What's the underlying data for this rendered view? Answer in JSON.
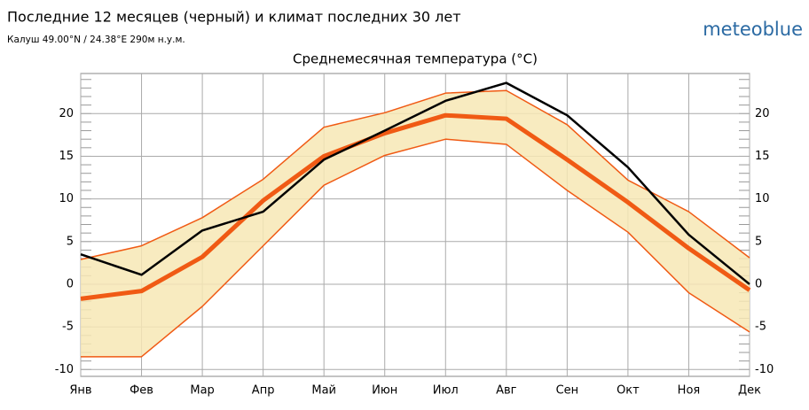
{
  "header": {
    "title": "Последние 12 месяцев (черный) и климат последних 30 лет",
    "subtitle": "Калуш 49.00°N / 24.38°E   290м н.у.м.",
    "logo": "meteoblue"
  },
  "chart_data": {
    "type": "line",
    "title": "Среднемесячная температура (°C)",
    "categories": [
      "Янв",
      "Фев",
      "Мар",
      "Апр",
      "Май",
      "Июн",
      "Июл",
      "Авг",
      "Сен",
      "Окт",
      "Ноя",
      "Дек"
    ],
    "band": {
      "color": "#f7e8b5",
      "upper": [
        2.9,
        4.5,
        7.8,
        12.3,
        18.4,
        20.1,
        22.4,
        22.7,
        18.7,
        12.2,
        8.5,
        3.1
      ],
      "lower": [
        -8.5,
        -8.5,
        -2.6,
        4.5,
        11.6,
        15.1,
        17.0,
        16.4,
        11.0,
        6.1,
        -1.0,
        -5.6
      ],
      "line_color": "#f05a14"
    },
    "series": [
      {
        "color": "#f05a14",
        "width": 5,
        "values": [
          -1.7,
          -0.8,
          3.2,
          9.8,
          15.0,
          17.7,
          19.8,
          19.4,
          14.6,
          9.6,
          4.2,
          -0.7
        ]
      },
      {
        "color": "#000000",
        "width": 2.5,
        "values": [
          3.5,
          1.1,
          6.3,
          8.5,
          14.6,
          18.0,
          21.5,
          23.6,
          19.8,
          13.7,
          5.8,
          0.0
        ]
      }
    ],
    "ylim": [
      -10.8,
      24.7
    ],
    "yticks": [
      -10,
      -5,
      0,
      5,
      10,
      15,
      20
    ],
    "grid": true
  }
}
